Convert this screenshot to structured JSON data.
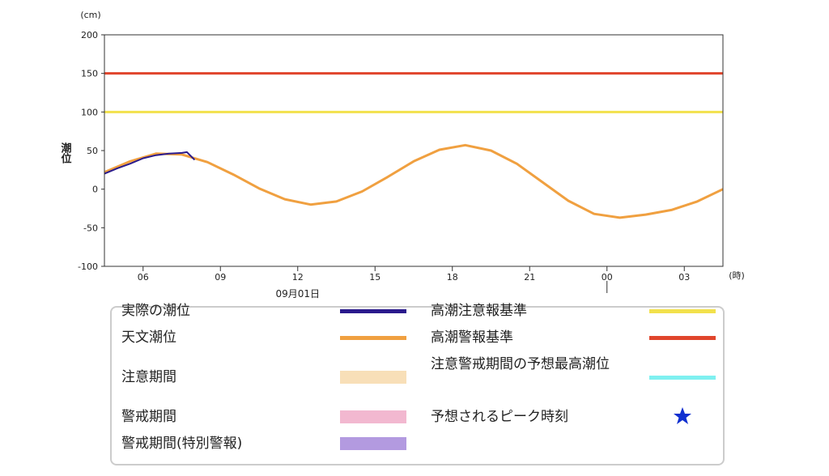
{
  "chart_data": {
    "type": "line",
    "y_unit": "(cm)",
    "y_label": "潮位",
    "x_unit": "(時)",
    "date_label": {
      "value": 12,
      "label": "09月01日"
    },
    "day_boundary": 24,
    "xlim": [
      4.5,
      28.5
    ],
    "xticks": [
      {
        "value": 6,
        "label": "06"
      },
      {
        "value": 9,
        "label": "09"
      },
      12,
      15,
      18,
      21,
      {
        "value": 24,
        "label": "00"
      },
      {
        "value": 27,
        "label": "03"
      }
    ],
    "ylim": [
      -100,
      200
    ],
    "yticks": [
      -100,
      -50,
      0,
      50,
      100,
      150,
      200
    ],
    "grid": false,
    "series": [
      {
        "name": "実際の潮位",
        "color": "#2a1a8c",
        "x": [
          4.5,
          5,
          5.5,
          6,
          6.5,
          7,
          7.5,
          7.7,
          8
        ],
        "values": [
          20,
          27,
          33,
          40,
          44,
          46,
          47,
          48,
          38
        ]
      },
      {
        "name": "天文潮位",
        "color": "#f0a040",
        "x": [
          4.5,
          5.5,
          6.5,
          7.5,
          8.5,
          9.5,
          10.5,
          11.5,
          12.5,
          13.5,
          14.5,
          15.5,
          16.5,
          17.5,
          18.5,
          19.5,
          20.5,
          21.5,
          22.5,
          23.5,
          24.5,
          25.5,
          26.5,
          27.5,
          28.5
        ],
        "values": [
          22,
          36,
          46,
          45,
          35,
          19,
          1,
          -13,
          -20,
          -16,
          -3,
          16,
          36,
          51,
          57,
          50,
          33,
          9,
          -15,
          -32,
          -37,
          -33,
          -27,
          -16,
          0
        ]
      }
    ],
    "thresholds": [
      {
        "name": "高潮注意報基準",
        "color": "#f2e14c",
        "value": 100
      },
      {
        "name": "高潮警報基準",
        "color": "#e0452c",
        "value": 150
      }
    ],
    "legend_extra": [
      {
        "name": "注意期間",
        "color": "#f8dfb8",
        "marker": "band"
      },
      {
        "name": "警戒期間",
        "color": "#f2b8d0",
        "marker": "band"
      },
      {
        "name": "警戒期間(特別警報)",
        "color": "#b39ae0",
        "marker": "band"
      },
      {
        "name": "注意警戒期間の予想最高潮位",
        "color": "#7ff0f0",
        "marker": "line"
      },
      {
        "name": "予想されるピーク時刻",
        "color": "#1030d0",
        "marker": "star"
      }
    ]
  }
}
